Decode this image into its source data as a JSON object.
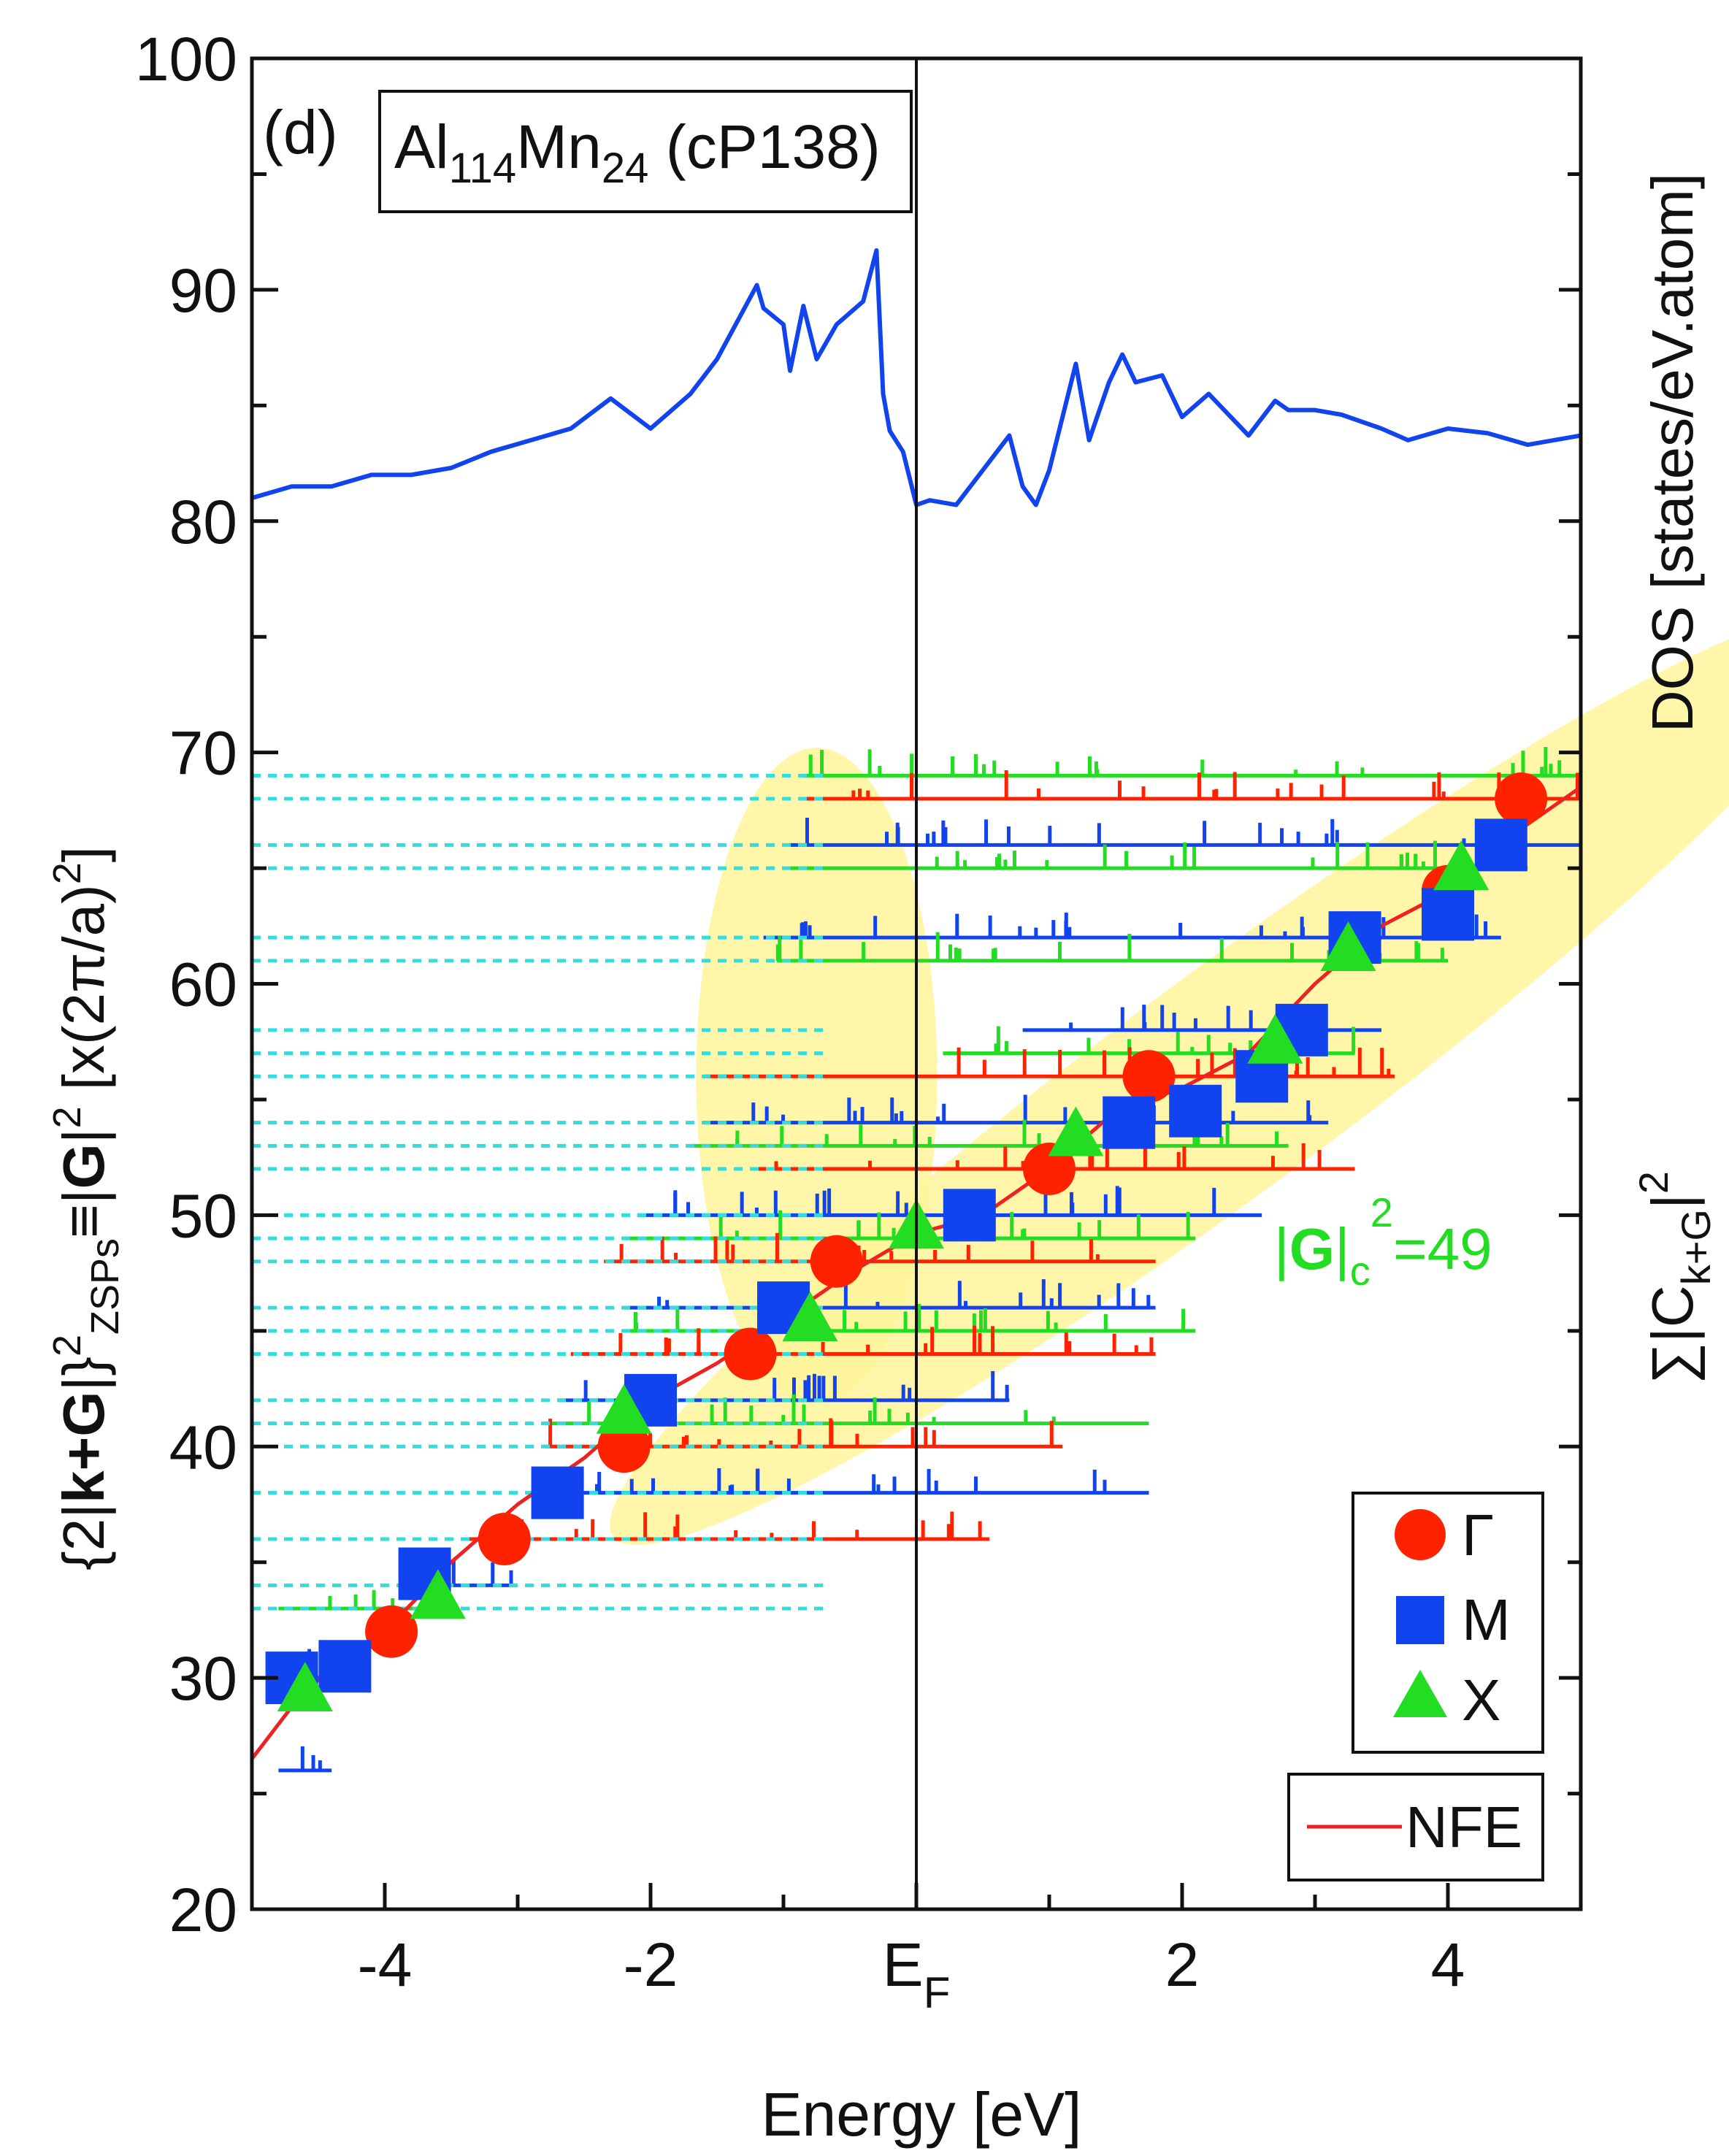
{
  "chart_data": {
    "type": "line",
    "panel_label": "(d)",
    "compound": {
      "prefix": "Al",
      "sub1": "114",
      "mid": "Mn",
      "sub2": "24",
      "suffix": " (cP138)"
    },
    "xlabel": "Energy [eV]",
    "xlim": [
      -5,
      5
    ],
    "xticks": [
      {
        "v": -4,
        "label": "-4"
      },
      {
        "v": -2,
        "label": "-2"
      },
      {
        "v": 0,
        "label": "E",
        "sub": "F"
      },
      {
        "v": 2,
        "label": "2"
      },
      {
        "v": 4,
        "label": "4"
      }
    ],
    "ylim": [
      20,
      100
    ],
    "yticks": [
      "20",
      "30",
      "40",
      "50",
      "60",
      "70",
      "80",
      "90",
      "100"
    ],
    "ylabel_left": {
      "p1": "{2|",
      "bold": "k+G",
      "p2": "|}",
      "sup1": "2",
      "sub1": "ZSPs",
      "p3": "≡|",
      "bold2": "G",
      "p4": "|",
      "sup2": "2",
      "p5": " [x(2π/a)",
      "sup3": "2",
      "p6": "]"
    },
    "ylabel_right_top": "DOS [states/eV.atom]",
    "ylabel_right_bottom": {
      "p1": "∑|C",
      "sub": "k+G",
      "p2": "|",
      "sup": "2"
    },
    "annotation": {
      "p1": "|",
      "bold": "G",
      "p2": "|",
      "sub": "c",
      "sup": "2",
      "p3": "=49"
    },
    "legend": {
      "symbols": [
        {
          "name": "Γ",
          "marker": "circle",
          "color": "#ff2200"
        },
        {
          "name": "M",
          "marker": "square",
          "color": "#1144ee"
        },
        {
          "name": "X",
          "marker": "triangle",
          "color": "#22dd22"
        }
      ],
      "line": {
        "name": "NFE",
        "color": "#ee2222"
      }
    },
    "colors": {
      "dos": "#1144ee",
      "nfe": "#ee2222",
      "gamma": "#ff2200",
      "M": "#1144ee",
      "X": "#22dd22",
      "dotted": "#33dddd",
      "highlight": "#fff59a"
    },
    "series": [
      {
        "name": "DOS",
        "x": [
          -5.0,
          -4.7,
          -4.4,
          -4.1,
          -3.8,
          -3.5,
          -3.2,
          -2.9,
          -2.6,
          -2.3,
          -2.0,
          -1.7,
          -1.5,
          -1.2,
          -1.15,
          -1.0,
          -0.95,
          -0.85,
          -0.75,
          -0.6,
          -0.4,
          -0.3,
          -0.25,
          -0.2,
          -0.1,
          0.0,
          0.1,
          0.3,
          0.5,
          0.7,
          0.8,
          0.9,
          1.0,
          1.2,
          1.3,
          1.45,
          1.55,
          1.65,
          1.85,
          2.0,
          2.2,
          2.5,
          2.7,
          2.8,
          3.0,
          3.2,
          3.5,
          3.7,
          4.0,
          4.3,
          4.6,
          5.0
        ],
        "y": [
          81.0,
          81.5,
          81.5,
          82.0,
          82.0,
          82.3,
          83.0,
          83.5,
          84.0,
          85.3,
          84.0,
          85.5,
          87.0,
          90.2,
          89.2,
          88.5,
          86.5,
          89.3,
          87.0,
          88.5,
          89.5,
          91.7,
          85.5,
          83.9,
          83.0,
          80.7,
          80.9,
          80.7,
          82.2,
          83.7,
          81.5,
          80.7,
          82.2,
          86.8,
          83.5,
          86.0,
          87.2,
          86.0,
          86.3,
          84.5,
          85.5,
          83.7,
          85.2,
          84.8,
          84.8,
          84.6,
          84.0,
          83.5,
          84.0,
          83.8,
          83.3,
          83.7
        ]
      },
      {
        "name": "NFE",
        "x": [
          -5.0,
          -4.6,
          -4.0,
          -3.5,
          -3.0,
          -2.5,
          -2.0,
          -1.5,
          -1.0,
          -0.5,
          0.0,
          0.5,
          1.0,
          1.5,
          2.0,
          2.5,
          3.0,
          3.5,
          4.0,
          4.5,
          5.0
        ],
        "y": [
          26.5,
          29.5,
          32.0,
          35.0,
          37.5,
          39.5,
          42.0,
          43.6,
          45.5,
          47.5,
          49.2,
          50.0,
          52.0,
          54.5,
          55.5,
          57.0,
          60.0,
          62.5,
          64.0,
          66.5,
          68.5
        ]
      },
      {
        "name": "Γ",
        "x": [
          -3.95,
          -3.1,
          -2.2,
          -1.25,
          -0.6,
          1.0,
          1.75,
          4.0,
          4.55
        ],
        "y": [
          32,
          36,
          40,
          44,
          48,
          52,
          56,
          64,
          68
        ]
      },
      {
        "name": "M",
        "x": [
          -4.7,
          -4.3,
          -3.7,
          -2.7,
          -2.0,
          -1.0,
          0.4,
          1.6,
          2.1,
          2.6,
          2.9,
          3.3,
          4.0,
          4.4
        ],
        "y": [
          30,
          30.5,
          34.5,
          38,
          42,
          46,
          50,
          54,
          54.5,
          56,
          58,
          62,
          63,
          66
        ]
      },
      {
        "name": "X",
        "x": [
          -4.6,
          -3.6,
          -2.2,
          -0.8,
          0.0,
          1.2,
          2.7,
          3.25,
          4.1
        ],
        "y": [
          29.5,
          33.5,
          41.5,
          45.5,
          49.5,
          53.5,
          57.5,
          61.5,
          65
        ]
      }
    ]
  }
}
